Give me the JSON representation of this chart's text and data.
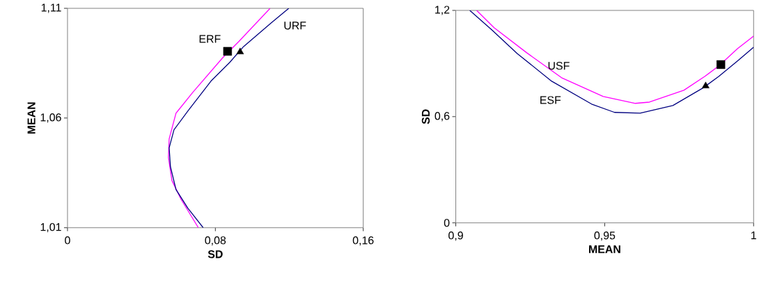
{
  "chart_data": [
    {
      "type": "line",
      "xlabel": "SD",
      "ylabel": "MEAN",
      "xlim": [
        0,
        0.16
      ],
      "ylim": [
        1.01,
        1.11
      ],
      "xticks": [
        {
          "value": 0,
          "label": "0"
        },
        {
          "value": 0.08,
          "label": "0,08"
        },
        {
          "value": 0.16,
          "label": "0,16"
        }
      ],
      "yticks": [
        {
          "value": 1.01,
          "label": "1,01"
        },
        {
          "value": 1.06,
          "label": "1,06"
        },
        {
          "value": 1.11,
          "label": "1,11"
        }
      ],
      "series": [
        {
          "name": "ERF",
          "color": "#ff00ff",
          "marker": "none",
          "x": [
            0.1096,
            0.0926,
            0.084,
            0.0678,
            0.0587,
            0.055,
            0.0546,
            0.0565,
            0.0614,
            0.0708
          ],
          "values": [
            1.11,
            1.0948,
            1.0875,
            1.0717,
            1.0622,
            1.0505,
            1.042,
            1.0315,
            1.023,
            1.01
          ]
        },
        {
          "name": "URF",
          "color": "#000080",
          "marker": "none",
          "x": [
            0.1197,
            0.1103,
            0.0953,
            0.0877,
            0.0776,
            0.0651,
            0.0576,
            0.055,
            0.0557,
            0.0587,
            0.0651,
            0.0734
          ],
          "values": [
            1.11,
            1.1034,
            1.0926,
            1.0853,
            1.0768,
            1.0632,
            1.0546,
            1.0464,
            1.0378,
            1.0274,
            1.0189,
            1.01
          ]
        },
        {
          "type": "scatter",
          "marker": "square",
          "color": "#000000",
          "x": [
            0.0866
          ],
          "values": [
            1.0904
          ]
        },
        {
          "type": "scatter",
          "marker": "triangle",
          "color": "#000000",
          "x": [
            0.0934
          ],
          "values": [
            1.0901
          ]
        }
      ]
    },
    {
      "type": "line",
      "xlabel": "MEAN",
      "ylabel": "SD",
      "xlim": [
        0.9,
        1
      ],
      "ylim": [
        0,
        1.2
      ],
      "xticks": [
        {
          "value": 0.9,
          "label": "0,9"
        },
        {
          "value": 0.95,
          "label": "0,95"
        },
        1
      ],
      "yticks": [
        0,
        {
          "value": 0.6,
          "label": "0,6"
        },
        {
          "value": 1.2,
          "label": "1,2"
        }
      ],
      "series": [
        {
          "name": "USF",
          "color": "#ff00ff",
          "marker": "none",
          "x": [
            0.907,
            0.9129,
            0.9238,
            0.9355,
            0.9495,
            0.9603,
            0.965,
            0.9766,
            0.9836,
            0.9883,
            0.9946,
            1.0
          ],
          "values": [
            1.2,
            1.102,
            0.961,
            0.82,
            0.714,
            0.675,
            0.682,
            0.749,
            0.827,
            0.886,
            0.984,
            1.055
          ]
        },
        {
          "name": "ESF",
          "color": "#000080",
          "marker": "none",
          "x": [
            0.9047,
            0.9121,
            0.9206,
            0.9322,
            0.9456,
            0.9533,
            0.9619,
            0.9729,
            0.9829,
            0.9883,
            0.9946,
            1.0
          ],
          "values": [
            1.2,
            1.09,
            0.957,
            0.8,
            0.671,
            0.624,
            0.62,
            0.663,
            0.761,
            0.827,
            0.914,
            0.992
          ]
        },
        {
          "type": "scatter",
          "marker": "square",
          "color": "#000000",
          "x": [
            0.989
          ],
          "values": [
            0.894
          ]
        },
        {
          "type": "scatter",
          "marker": "triangle",
          "color": "#000000",
          "x": [
            0.9839
          ],
          "values": [
            0.773
          ]
        }
      ]
    }
  ]
}
